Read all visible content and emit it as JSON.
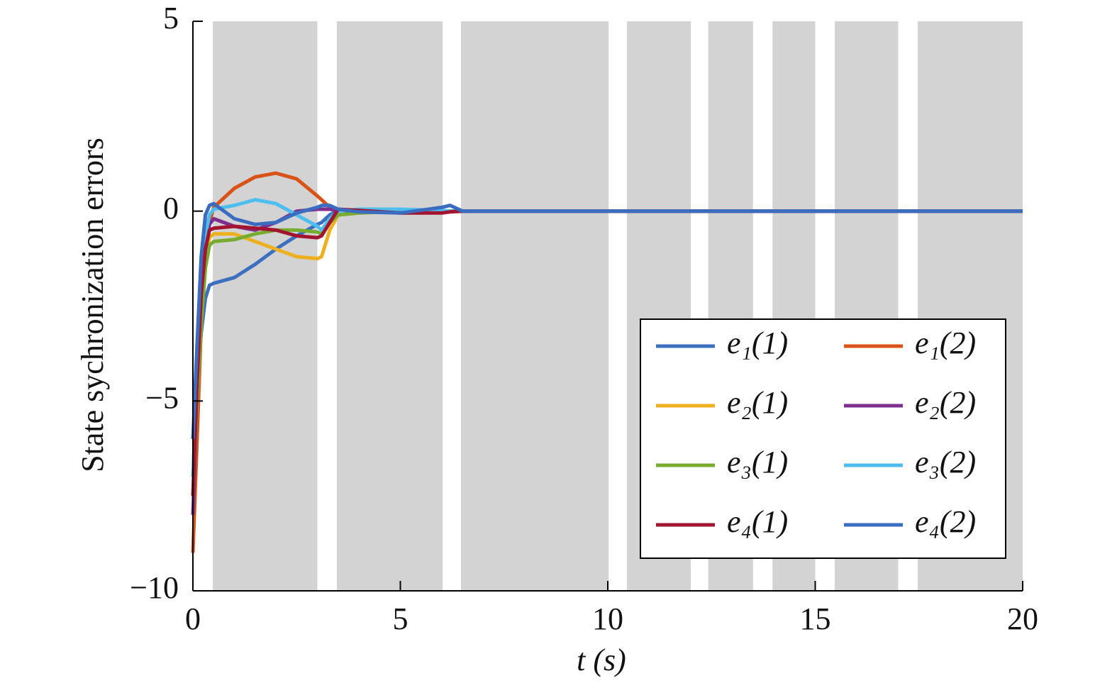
{
  "chart_data": {
    "type": "line",
    "xlabel": "t (s)",
    "ylabel": "State sychronization errors",
    "x": [
      0,
      0.1,
      0.2,
      0.3,
      0.4,
      0.5,
      1.0,
      1.5,
      2.0,
      2.5,
      3.0,
      3.1,
      3.3,
      3.5,
      4.0,
      5.0,
      6.0,
      6.2,
      6.5,
      10,
      20
    ],
    "series": [
      {
        "name": "e₁(1)",
        "color": "#3d6fbf",
        "values": [
          -6,
          -4.5,
          -3.2,
          -2.3,
          -1.95,
          -1.9,
          -1.75,
          -1.4,
          -1.0,
          -0.65,
          -0.35,
          -0.3,
          -0.1,
          0.02,
          0.03,
          0,
          0,
          0,
          0,
          0,
          0
        ]
      },
      {
        "name": "e₁(2)",
        "color": "#d95319",
        "values": [
          -9,
          -6,
          -3,
          -1.2,
          -0.3,
          0.1,
          0.6,
          0.9,
          1.0,
          0.85,
          0.4,
          0.3,
          0.1,
          0.02,
          0,
          -0.05,
          -0.03,
          0,
          0,
          0,
          0
        ]
      },
      {
        "name": "e₂(1)",
        "color": "#edb120",
        "values": [
          -7,
          -4.5,
          -2.5,
          -1.2,
          -0.7,
          -0.6,
          -0.6,
          -0.8,
          -1.0,
          -1.2,
          -1.25,
          -1.2,
          -0.5,
          -0.1,
          -0.05,
          0,
          0,
          0,
          0,
          0,
          0
        ]
      },
      {
        "name": "e₂(2)",
        "color": "#7e2f8e",
        "values": [
          -8,
          -5,
          -2.5,
          -1,
          -0.35,
          -0.2,
          -0.4,
          -0.5,
          -0.3,
          0,
          0.05,
          0.05,
          0.05,
          0.02,
          0,
          0,
          0,
          0,
          0,
          0,
          0
        ]
      },
      {
        "name": "e₃(1)",
        "color": "#77ac30",
        "values": [
          -7.5,
          -5,
          -3,
          -1.5,
          -0.9,
          -0.8,
          -0.75,
          -0.6,
          -0.5,
          -0.5,
          -0.55,
          -0.6,
          -0.3,
          -0.1,
          -0.05,
          0,
          0,
          0,
          0,
          0,
          0
        ]
      },
      {
        "name": "e₃(2)",
        "color": "#4dbeee",
        "values": [
          -7,
          -4,
          -2,
          -0.6,
          -0.1,
          0.05,
          0.15,
          0.3,
          0.2,
          -0.1,
          -0.4,
          -0.5,
          -0.2,
          0,
          0.05,
          0.05,
          0.02,
          0,
          0,
          0,
          0
        ]
      },
      {
        "name": "e₄(1)",
        "color": "#a2142f",
        "values": [
          -7.5,
          -4.5,
          -2.2,
          -1,
          -0.5,
          -0.45,
          -0.4,
          -0.45,
          -0.5,
          -0.65,
          -0.7,
          -0.65,
          -0.3,
          0.05,
          0.02,
          -0.05,
          -0.05,
          -0.02,
          0,
          0,
          0
        ]
      },
      {
        "name": "e₄(2)",
        "color": "#3a6cc0",
        "values": [
          -6,
          -3.5,
          -1.2,
          -0.1,
          0.15,
          0.2,
          -0.2,
          -0.35,
          -0.3,
          -0.05,
          0.1,
          0.15,
          0.15,
          0.05,
          -0.02,
          -0.05,
          0.1,
          0.15,
          0,
          0,
          0
        ]
      }
    ],
    "shaded_intervals": [
      [
        0.48,
        3.0
      ],
      [
        3.47,
        6.02
      ],
      [
        6.46,
        10.02
      ],
      [
        10.46,
        12.0
      ],
      [
        12.42,
        13.5
      ],
      [
        13.97,
        15.0
      ],
      [
        15.47,
        17.0
      ],
      [
        17.47,
        20
      ]
    ],
    "shade_color": "#d3d3d3",
    "xlim": [
      0,
      20
    ],
    "xticks": [
      0,
      5,
      10,
      15,
      20
    ],
    "ylim": [
      -10,
      5
    ],
    "yticks": [
      {
        "value": -10,
        "label": "−10"
      },
      {
        "value": -5,
        "label": "−5"
      },
      0,
      5
    ],
    "legend": "lower right",
    "legend_columns": 2
  }
}
